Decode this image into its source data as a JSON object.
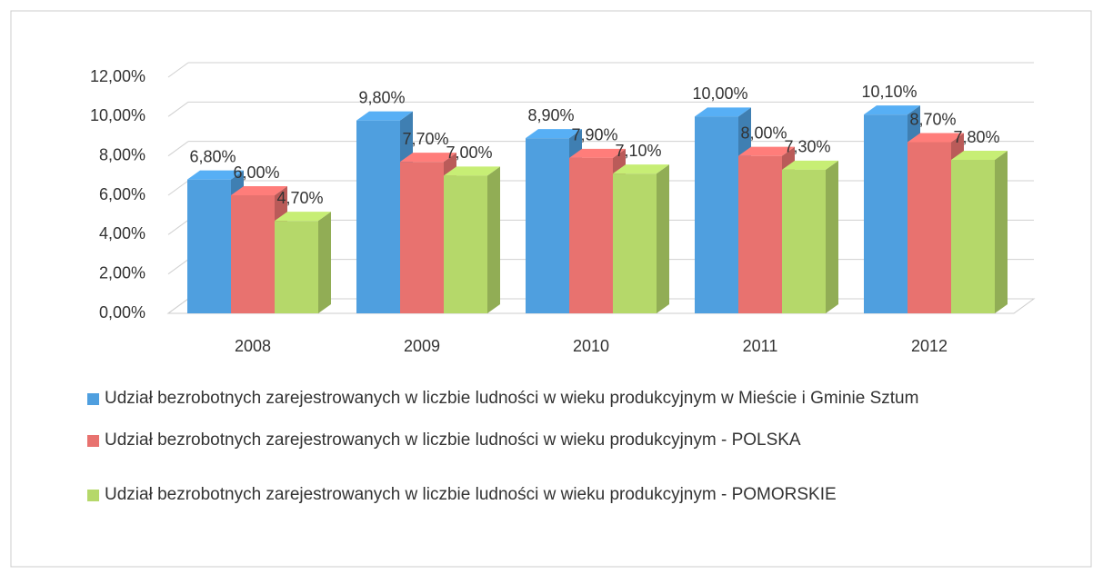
{
  "chart_data": {
    "type": "bar",
    "categories": [
      "2008",
      "2009",
      "2010",
      "2011",
      "2012"
    ],
    "series": [
      {
        "name": "Udział bezrobotnych zarejestrowanych w liczbie ludności w wieku produkcyjnym w Mieście i Gminie Sztum",
        "color": "#4f9fdf",
        "values": [
          6.8,
          9.8,
          8.9,
          10.0,
          10.1
        ],
        "value_labels": [
          "6,80%",
          "9,80%",
          "8,90%",
          "10,00%",
          "10,10%"
        ]
      },
      {
        "name": "Udział bezrobotnych zarejestrowanych w liczbie ludności w wieku produkcyjnym - POLSKA",
        "color": "#e8726f",
        "values": [
          6.0,
          7.7,
          7.9,
          8.0,
          8.7
        ],
        "value_labels": [
          "6,00%",
          "7,70%",
          "7,90%",
          "8,00%",
          "8,70%"
        ]
      },
      {
        "name": "Udział bezrobotnych zarejestrowanych w liczbie ludności w wieku produkcyjnym - POMORSKIE",
        "color": "#b5d86a",
        "values": [
          4.7,
          7.0,
          7.1,
          7.3,
          7.8
        ],
        "value_labels": [
          "4,70%",
          "7,00%",
          "7,10%",
          "7,30%",
          "7,80%"
        ]
      }
    ],
    "ylim": [
      0,
      12
    ],
    "yticks": [
      {
        "value": 0,
        "label": "0,00%"
      },
      {
        "value": 2,
        "label": "2,00%"
      },
      {
        "value": 4,
        "label": "4,00%"
      },
      {
        "value": 6,
        "label": "6,00%"
      },
      {
        "value": 8,
        "label": "8,00%"
      },
      {
        "value": 10,
        "label": "10,00%"
      },
      {
        "value": 12,
        "label": "12,00%"
      }
    ],
    "grid": true
  }
}
